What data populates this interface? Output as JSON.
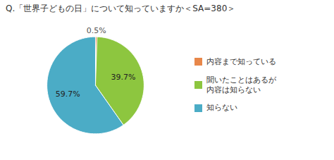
{
  "chart_data": {
    "type": "pie",
    "title": "Q.「世界子どもの日」について知っていますか＜SA=380＞",
    "categories": [
      "内容まで知っている",
      "聞いたことはあるが\n内容は知らない",
      "知らない"
    ],
    "values": [
      0.5,
      39.7,
      59.7
    ],
    "value_labels": [
      "0.5%",
      "39.7%",
      "59.7%"
    ],
    "colors": [
      "#E8874A",
      "#8DC63F",
      "#4BACC6"
    ],
    "data_labels": true,
    "legend": "right"
  }
}
